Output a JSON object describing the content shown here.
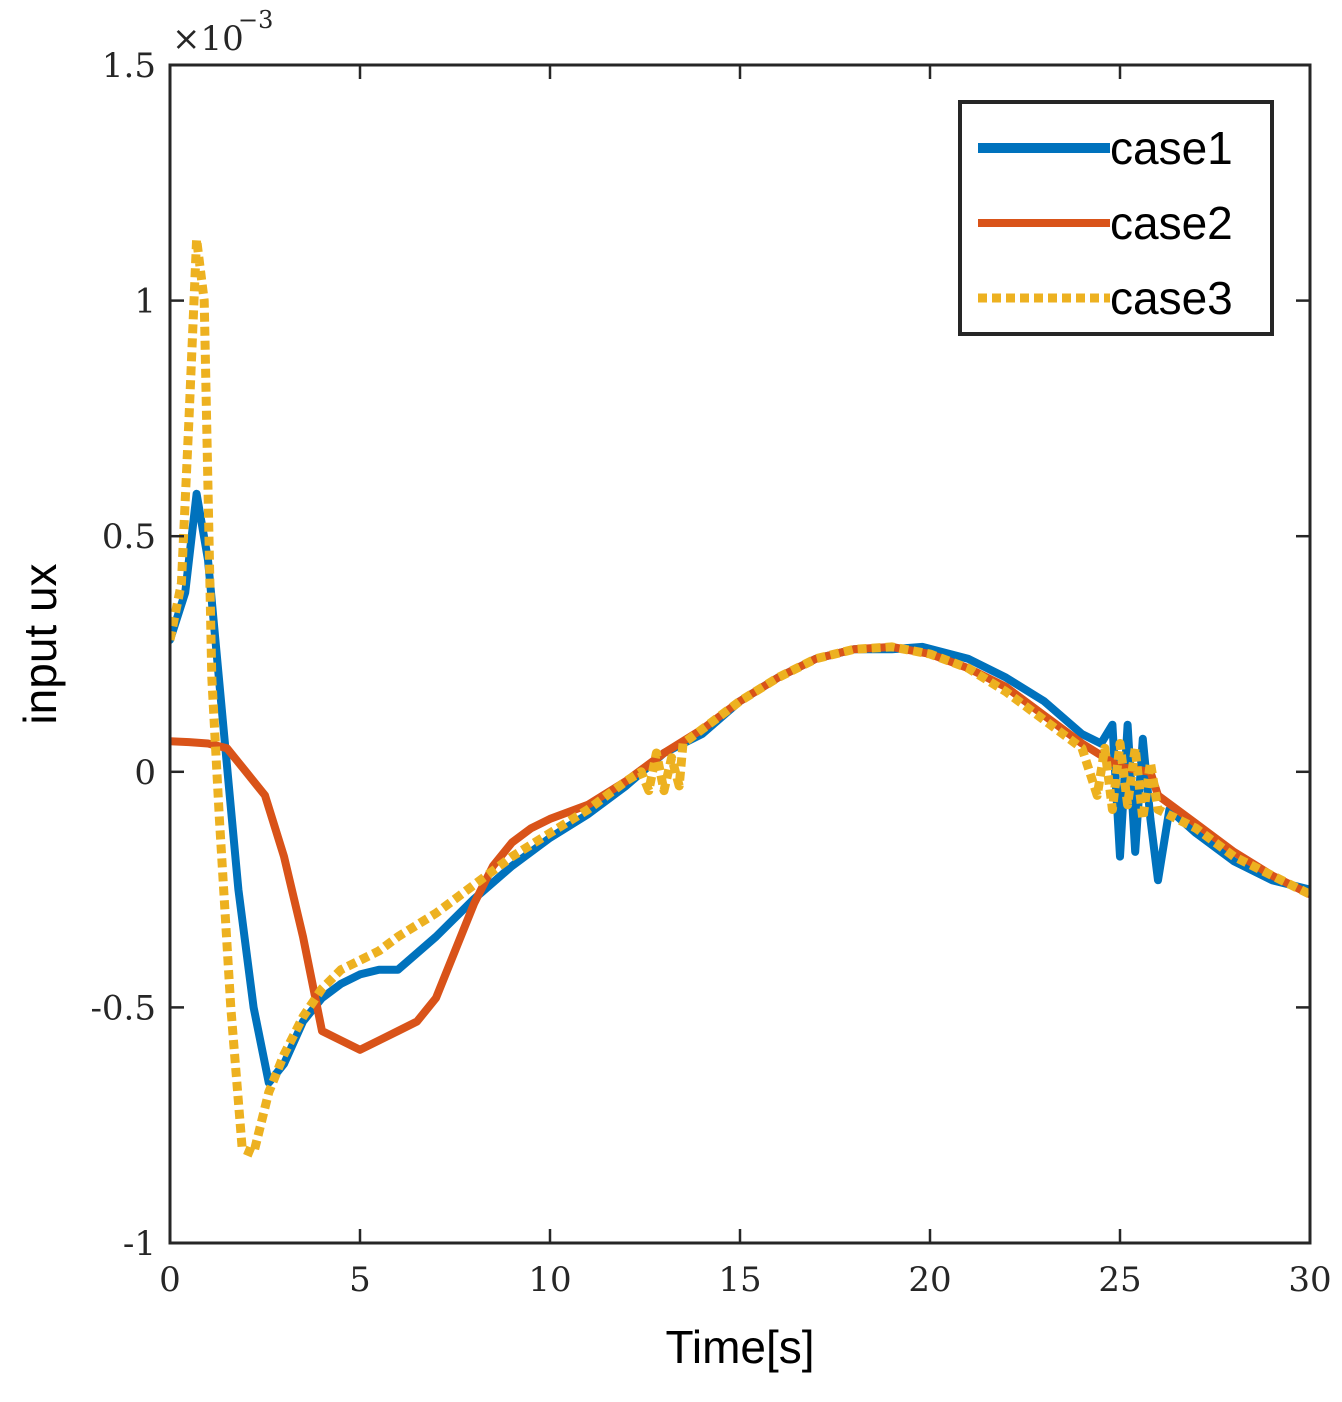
{
  "chart_data": {
    "type": "line",
    "title": "",
    "xlabel": "Time[s]",
    "ylabel": "input ux",
    "xlim": [
      0,
      30
    ],
    "ylim": [
      -1,
      1.5
    ],
    "y_scale_label": "×10",
    "y_scale_exponent": "−3",
    "xticks": [
      0,
      5,
      10,
      15,
      20,
      25,
      30
    ],
    "xtick_labels": [
      "0",
      "5",
      "10",
      "15",
      "20",
      "25",
      "30"
    ],
    "yticks": [
      -1,
      -0.5,
      0,
      0.5,
      1,
      1.5
    ],
    "ytick_labels": [
      "-1",
      "-0.5",
      "0",
      "0.5",
      "1",
      "1.5"
    ],
    "grid": false,
    "legend_position": "top-right",
    "series": [
      {
        "name": "case1",
        "color": "#0072BD",
        "style": "solid",
        "x": [
          0,
          0.4,
          0.7,
          1.0,
          1.4,
          1.8,
          2.2,
          2.6,
          3.0,
          3.5,
          4.0,
          4.5,
          5.0,
          5.5,
          6.0,
          7.0,
          8.0,
          9.0,
          10.0,
          11.0,
          12.0,
          13.0,
          14.0,
          15.0,
          16.0,
          17.0,
          18.0,
          19.0,
          19.8,
          21.0,
          22.0,
          23.0,
          24.0,
          24.5,
          24.8,
          25.0,
          25.2,
          25.4,
          25.6,
          25.8,
          26.0,
          26.3,
          27.0,
          28.0,
          29.0,
          30.0
        ],
        "y": [
          0.28,
          0.38,
          0.59,
          0.45,
          0.1,
          -0.25,
          -0.5,
          -0.66,
          -0.62,
          -0.53,
          -0.48,
          -0.45,
          -0.43,
          -0.42,
          -0.42,
          -0.35,
          -0.27,
          -0.2,
          -0.14,
          -0.09,
          -0.03,
          0.04,
          0.08,
          0.15,
          0.2,
          0.24,
          0.26,
          0.26,
          0.265,
          0.24,
          0.2,
          0.15,
          0.08,
          0.06,
          0.1,
          -0.18,
          0.1,
          -0.17,
          0.07,
          -0.1,
          -0.23,
          -0.08,
          -0.13,
          -0.19,
          -0.23,
          -0.25
        ]
      },
      {
        "name": "case2",
        "color": "#D95319",
        "style": "solid",
        "x": [
          0,
          0.5,
          1.0,
          1.5,
          2.0,
          2.5,
          3.0,
          3.5,
          4.0,
          4.5,
          5.0,
          5.5,
          6.0,
          6.5,
          7.0,
          7.5,
          8.0,
          8.5,
          9.0,
          9.5,
          10.0,
          11.0,
          12.0,
          13.0,
          14.0,
          15.0,
          16.0,
          17.0,
          18.0,
          19.0,
          20.0,
          21.0,
          22.0,
          23.0,
          24.0,
          25.0,
          25.8,
          26.0,
          27.0,
          28.0,
          29.0,
          30.0
        ],
        "y": [
          0.065,
          0.063,
          0.06,
          0.05,
          0.0,
          -0.05,
          -0.18,
          -0.35,
          -0.55,
          -0.57,
          -0.59,
          -0.57,
          -0.55,
          -0.53,
          -0.48,
          -0.38,
          -0.28,
          -0.2,
          -0.15,
          -0.12,
          -0.1,
          -0.07,
          -0.02,
          0.04,
          0.09,
          0.15,
          0.2,
          0.24,
          0.26,
          0.265,
          0.25,
          0.22,
          0.18,
          0.12,
          0.06,
          0.01,
          0.0,
          -0.05,
          -0.11,
          -0.17,
          -0.22,
          -0.26
        ]
      },
      {
        "name": "case3",
        "color": "#EDB120",
        "style": "dotted",
        "x": [
          0,
          0.3,
          0.5,
          0.7,
          0.9,
          1.1,
          1.3,
          1.6,
          1.9,
          2.2,
          2.6,
          3.0,
          3.5,
          4.0,
          4.5,
          5.0,
          5.5,
          6.0,
          7.0,
          8.0,
          9.0,
          10.0,
          11.0,
          12.0,
          12.4,
          12.6,
          12.8,
          13.0,
          13.2,
          13.4,
          13.5,
          14.0,
          15.0,
          16.0,
          17.0,
          18.0,
          19.0,
          20.0,
          21.0,
          22.0,
          23.0,
          24.0,
          24.4,
          24.6,
          24.8,
          25.0,
          25.2,
          25.4,
          25.6,
          25.8,
          26.0,
          27.0,
          28.0,
          29.0,
          30.0
        ],
        "y": [
          0.28,
          0.4,
          0.75,
          1.13,
          1.0,
          0.2,
          -0.1,
          -0.5,
          -0.8,
          -0.81,
          -0.68,
          -0.6,
          -0.52,
          -0.46,
          -0.42,
          -0.4,
          -0.38,
          -0.35,
          -0.3,
          -0.24,
          -0.18,
          -0.13,
          -0.08,
          -0.02,
          0.0,
          -0.04,
          0.04,
          -0.04,
          0.03,
          -0.03,
          0.06,
          0.09,
          0.15,
          0.2,
          0.24,
          0.26,
          0.265,
          0.25,
          0.22,
          0.17,
          0.11,
          0.05,
          -0.05,
          0.05,
          -0.08,
          0.06,
          -0.07,
          0.05,
          -0.1,
          0.02,
          -0.08,
          -0.12,
          -0.18,
          -0.22,
          -0.26
        ]
      }
    ]
  }
}
